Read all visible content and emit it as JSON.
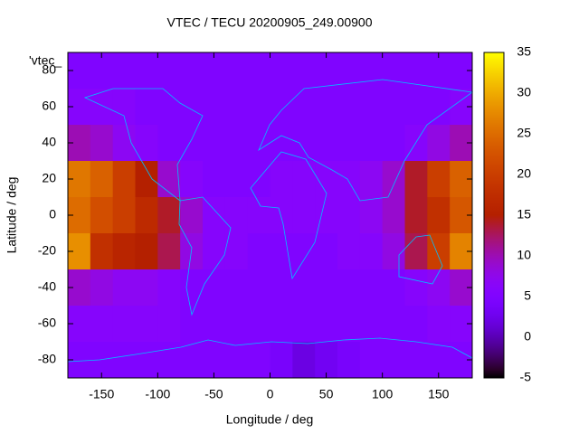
{
  "chart_data": {
    "type": "heatmap",
    "title": "VTEC / TECU 20200905_249.00900",
    "xlabel": "Longitude / deg",
    "ylabel": "Latitude / deg",
    "legend_label": "'vtec_",
    "x": [
      -170,
      -150,
      -130,
      -110,
      -90,
      -70,
      -50,
      -30,
      -10,
      10,
      30,
      50,
      70,
      90,
      110,
      130,
      150,
      170
    ],
    "y": [
      80,
      60,
      40,
      20,
      0,
      -20,
      -40,
      -60,
      -80
    ],
    "values": [
      [
        5,
        5,
        5,
        5,
        5,
        5,
        5,
        5,
        5,
        5,
        5,
        5,
        5,
        5,
        5,
        5,
        5,
        5
      ],
      [
        6,
        6,
        6,
        5,
        5,
        5,
        5,
        5,
        5,
        5,
        5,
        5,
        5,
        5,
        5,
        5,
        5,
        6
      ],
      [
        10,
        9,
        7,
        6,
        5,
        5,
        5,
        5,
        5,
        5,
        5,
        5,
        5,
        5,
        5,
        6,
        8,
        10
      ],
      [
        26,
        24,
        20,
        15,
        9,
        6,
        5,
        5,
        5,
        6,
        6,
        6,
        6,
        7,
        9,
        14,
        20,
        24
      ],
      [
        25,
        22,
        20,
        17,
        14,
        9,
        6,
        6,
        6,
        6,
        6,
        6,
        6,
        7,
        9,
        14,
        18,
        23
      ],
      [
        28,
        18,
        16,
        15,
        13,
        8,
        6,
        6,
        5,
        5,
        5,
        5,
        6,
        6,
        8,
        13,
        20,
        27
      ],
      [
        9,
        8,
        7,
        7,
        6,
        5,
        5,
        5,
        5,
        5,
        5,
        5,
        5,
        5,
        5,
        6,
        7,
        9
      ],
      [
        6,
        6,
        6,
        6,
        6,
        5,
        5,
        5,
        5,
        5,
        5,
        5,
        5,
        5,
        5,
        5,
        6,
        6
      ],
      [
        5,
        5,
        5,
        5,
        5,
        5,
        5,
        5,
        5,
        4,
        2,
        3,
        4,
        5,
        5,
        5,
        5,
        5
      ]
    ],
    "xlim": [
      -180,
      180
    ],
    "ylim": [
      -90,
      90
    ],
    "xticks": [
      -150,
      -100,
      -50,
      0,
      50,
      100,
      150
    ],
    "yticks": [
      -80,
      -60,
      -40,
      -20,
      0,
      20,
      40,
      60,
      80
    ],
    "clim": [
      -5,
      35
    ],
    "cticks": [
      -5,
      0,
      5,
      10,
      15,
      20,
      25,
      30,
      35
    ]
  }
}
